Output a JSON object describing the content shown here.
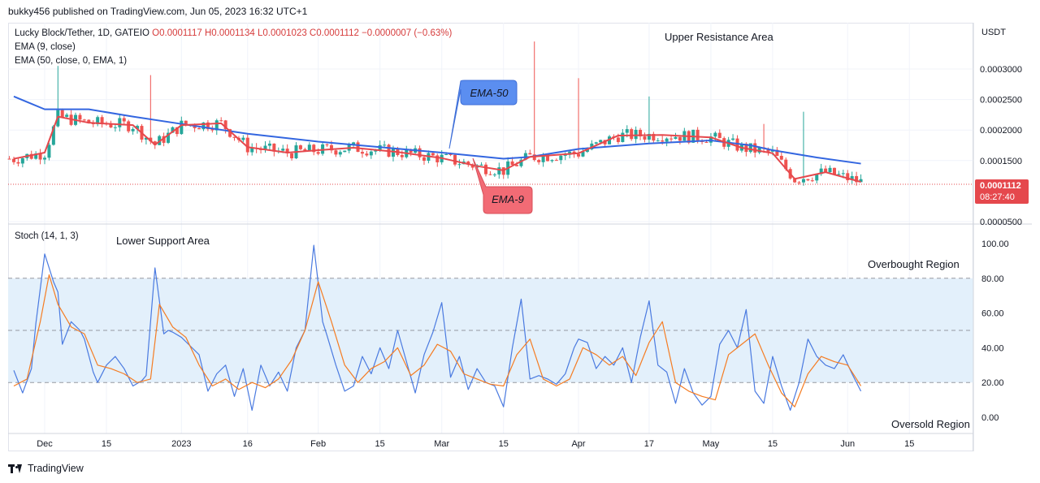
{
  "publisher": "bukky456 published on TradingView.com, Jun 05, 2023 16:32 UTC+1",
  "legend": {
    "symbol": "Lucky Block/Tether, 1D, GATEIO",
    "ohlc": "O0.0001117 H0.0001134 L0.0001023 C0.0001112 −0.0000007 (−0.63%)",
    "ema9": "EMA (9, close)",
    "ema50": "EMA (50, close, 0, EMA, 1)",
    "stoch": "Stoch (14, 1, 3)"
  },
  "annotations": {
    "upper_resistance": "Upper Resistance Area",
    "lower_support": "Lower Support Area",
    "overbought": "Overbought Region",
    "oversold": "Oversold Region",
    "ema50_callout": "EMA-50",
    "ema9_callout": "EMA-9"
  },
  "price_axis": {
    "currency": "USDT",
    "ticks": [
      "0.0003000",
      "0.0002500",
      "0.0002000",
      "0.0001500",
      "0.0000500"
    ],
    "tick_values": [
      0.0003,
      0.00025,
      0.0002,
      0.00015,
      5e-05
    ],
    "last_price": "0.0001112",
    "countdown": "08:27:40"
  },
  "time_axis": {
    "labels": [
      "Dec",
      "15",
      "2023",
      "16",
      "Feb",
      "15",
      "Mar",
      "15",
      "Apr",
      "17",
      "May",
      "15",
      "Jun",
      "15"
    ],
    "label_days": [
      0,
      14,
      31,
      46,
      62,
      76,
      90,
      104,
      121,
      137,
      151,
      165,
      182,
      196
    ]
  },
  "stoch_axis": {
    "ticks": [
      "100.00",
      "80.00",
      "60.00",
      "40.00",
      "20.00",
      "0.00"
    ],
    "tick_values": [
      100,
      80,
      60,
      40,
      20,
      0
    ]
  },
  "footer": {
    "brand": "TradingView"
  },
  "colors": {
    "up": "#26a69a",
    "down": "#ef5350",
    "ema9": "#e5484d",
    "ema50": "#3366e0",
    "stoch_k": "#4a7ae0",
    "stoch_d": "#f57c22",
    "band": "#e3f0fb",
    "ema50_callout": "#5b8ef0",
    "ema9_callout": "#f26b75"
  },
  "chart_data": [
    {
      "type": "candlestick",
      "title": "Lucky Block/Tether, 1D, GATEIO",
      "x_unit": "days from Dec 1, 2022",
      "ylim": [
        5e-05,
        0.00031
      ],
      "series": [
        {
          "name": "EMA (9, close)",
          "x": [
            -7,
            0,
            3,
            10,
            20,
            25,
            31,
            40,
            46,
            55,
            62,
            70,
            80,
            90,
            98,
            104,
            110,
            121,
            130,
            140,
            151,
            158,
            165,
            170,
            177,
            185
          ],
          "values": [
            0.000153,
            0.000163,
            0.000222,
            0.000212,
            0.000208,
            0.000176,
            0.000208,
            0.000211,
            0.000172,
            0.000163,
            0.000167,
            0.000171,
            0.000164,
            0.000154,
            0.000141,
            0.000134,
            0.000156,
            0.000162,
            0.000191,
            0.000192,
            0.000188,
            0.000171,
            0.000162,
            0.00012,
            0.000131,
            0.000115
          ]
        },
        {
          "name": "EMA (50, close, 0, EMA, 1)",
          "x": [
            -7,
            0,
            10,
            20,
            31,
            46,
            62,
            76,
            90,
            104,
            110,
            121,
            137,
            151,
            160,
            165,
            175,
            185
          ],
          "values": [
            0.000255,
            0.000234,
            0.000234,
            0.000222,
            0.00021,
            0.000194,
            0.000181,
            0.000172,
            0.000163,
            0.000153,
            0.000156,
            0.000169,
            0.000178,
            0.000183,
            0.000175,
            0.000167,
            0.000155,
            0.000145
          ]
        }
      ],
      "last_close": 0.0001112
    },
    {
      "type": "line",
      "title": "Stoch (14, 1, 3)",
      "ylim": [
        0,
        100
      ],
      "series": [
        {
          "name": "%K",
          "x": [
            -7,
            -5,
            -3,
            -2,
            0,
            2,
            3,
            4,
            6,
            8,
            9,
            11,
            12,
            14,
            16,
            18,
            20,
            22,
            23,
            25,
            27,
            28,
            29,
            31,
            33,
            35,
            37,
            39,
            41,
            43,
            45,
            47,
            49,
            51,
            53,
            55,
            57,
            59,
            61,
            63,
            64,
            66,
            68,
            70,
            72,
            74,
            76,
            78,
            80,
            82,
            84,
            86,
            88,
            90,
            92,
            94,
            96,
            98,
            100,
            102,
            104,
            106,
            108,
            110,
            112,
            114,
            116,
            118,
            120,
            121,
            123,
            125,
            127,
            129,
            131,
            133,
            135,
            137,
            139,
            141,
            143,
            145,
            147,
            149,
            151,
            153,
            155,
            157,
            159,
            161,
            163,
            165,
            167,
            169,
            171,
            173,
            175,
            177,
            179,
            181,
            183,
            185
          ],
          "values": [
            27,
            14,
            28,
            54,
            94,
            78,
            72,
            42,
            55,
            50,
            45,
            26,
            20,
            30,
            35,
            28,
            18,
            21,
            24,
            86,
            48,
            50,
            49,
            46,
            41,
            36,
            15,
            25,
            30,
            12,
            28,
            4,
            30,
            18,
            26,
            15,
            40,
            50,
            99,
            55,
            47,
            30,
            15,
            18,
            35,
            25,
            40,
            28,
            50,
            32,
            14,
            36,
            49,
            66,
            23,
            35,
            16,
            28,
            20,
            18,
            6,
            40,
            68,
            22,
            24,
            22,
            19,
            25,
            40,
            45,
            43,
            28,
            35,
            30,
            40,
            20,
            46,
            67,
            30,
            26,
            8,
            28,
            14,
            7,
            12,
            42,
            50,
            40,
            62,
            15,
            8,
            35,
            18,
            4,
            20,
            45,
            35,
            30,
            28,
            36,
            25,
            15
          ]
        },
        {
          "name": "%D",
          "x": [
            -7,
            -4,
            -1,
            1,
            3,
            6,
            9,
            12,
            15,
            18,
            21,
            24,
            26,
            29,
            32,
            35,
            38,
            41,
            44,
            47,
            50,
            53,
            56,
            59,
            62,
            65,
            68,
            71,
            74,
            77,
            80,
            83,
            86,
            89,
            92,
            95,
            98,
            101,
            104,
            107,
            110,
            113,
            116,
            119,
            122,
            125,
            128,
            131,
            134,
            137,
            140,
            143,
            146,
            149,
            152,
            155,
            158,
            161,
            164,
            167,
            170,
            173,
            176,
            179,
            182,
            185
          ],
          "values": [
            18,
            22,
            55,
            82,
            65,
            52,
            48,
            30,
            28,
            25,
            20,
            22,
            65,
            52,
            46,
            30,
            18,
            22,
            16,
            20,
            17,
            22,
            33,
            50,
            78,
            55,
            30,
            20,
            28,
            32,
            40,
            24,
            30,
            42,
            38,
            25,
            22,
            19,
            18,
            36,
            45,
            22,
            18,
            22,
            40,
            36,
            30,
            35,
            24,
            43,
            55,
            20,
            15,
            12,
            10,
            36,
            42,
            48,
            30,
            14,
            6,
            25,
            35,
            32,
            30,
            18
          ]
        }
      ],
      "bands": {
        "upper": 80,
        "middle": 50,
        "lower": 20
      }
    }
  ]
}
